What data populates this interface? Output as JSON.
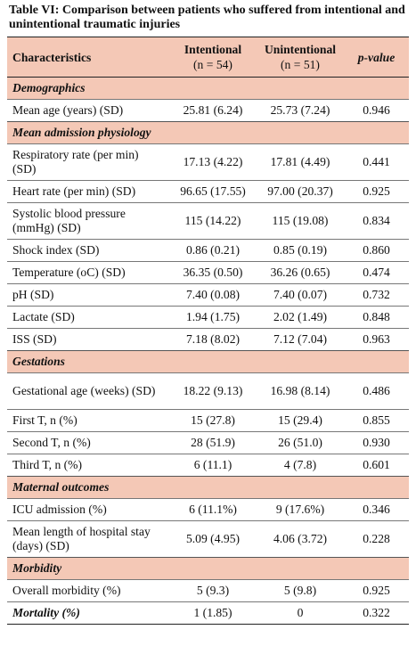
{
  "caption": "Table VI: Comparison between patients who suffered from intentional and unintentional traumatic injuries",
  "header": {
    "characteristics": "Characteristics",
    "intentional": "Intentional",
    "intentional_n": "(n = 54)",
    "unintentional": "Unintentional",
    "unintentional_n": "(n = 51)",
    "pvalue": "p-value"
  },
  "sections": {
    "demographics": "Demographics",
    "physiology": "Mean admission physiology",
    "gestations": "Gestations",
    "maternal": "Maternal outcomes",
    "morbidity": "Morbidity"
  },
  "rows": {
    "mean_age": [
      "Mean age (years) (SD)",
      "25.81 (6.24)",
      "25.73 (7.24)",
      "0.946"
    ],
    "resp_rate": [
      "Respiratory rate (per min) (SD)",
      "17.13 (4.22)",
      "17.81 (4.49)",
      "0.441"
    ],
    "heart_rate": [
      "Heart rate (per min) (SD)",
      "96.65 (17.55)",
      "97.00 (20.37)",
      "0.925"
    ],
    "sbp": [
      "Systolic blood pressure (mmHg) (SD)",
      "115 (14.22)",
      "115 (19.08)",
      "0.834"
    ],
    "shock": [
      "Shock index (SD)",
      "0.86 (0.21)",
      "0.85 (0.19)",
      "0.860"
    ],
    "temp": [
      "Temperature (oC) (SD)",
      "36.35 (0.50)",
      "36.26 (0.65)",
      "0.474"
    ],
    "ph": [
      "pH (SD)",
      "7.40 (0.08)",
      "7.40 (0.07)",
      "0.732"
    ],
    "lactate": [
      "Lactate (SD)",
      "1.94 (1.75)",
      "2.02 (1.49)",
      "0.848"
    ],
    "iss": [
      "ISS (SD)",
      "7.18 (8.02)",
      "7.12 (7.04)",
      "0.963"
    ],
    "gest_age": [
      "Gestational age (weeks) (SD)",
      "18.22 (9.13)",
      "16.98 (8.14)",
      "0.486"
    ],
    "first_t": [
      "First T, n (%)",
      "15 (27.8)",
      "15 (29.4)",
      "0.855"
    ],
    "second_t": [
      "Second T, n (%)",
      "28 (51.9)",
      "26 (51.0)",
      "0.930"
    ],
    "third_t": [
      "Third T, n (%)",
      "6 (11.1)",
      "4 (7.8)",
      "0.601"
    ],
    "icu": [
      "ICU admission (%)",
      "6 (11.1%)",
      "9 (17.6%)",
      "0.346"
    ],
    "los": [
      "Mean length of hospital stay (days) (SD)",
      "5.09 (4.95)",
      "4.06 (3.72)",
      "0.228"
    ],
    "overall_morbidity": [
      "Overall morbidity (%)",
      "5 (9.3)",
      "5 (9.8)",
      "0.925"
    ],
    "mortality": [
      "Mortality (%)",
      "1 (1.85)",
      "0",
      "0.322"
    ]
  }
}
